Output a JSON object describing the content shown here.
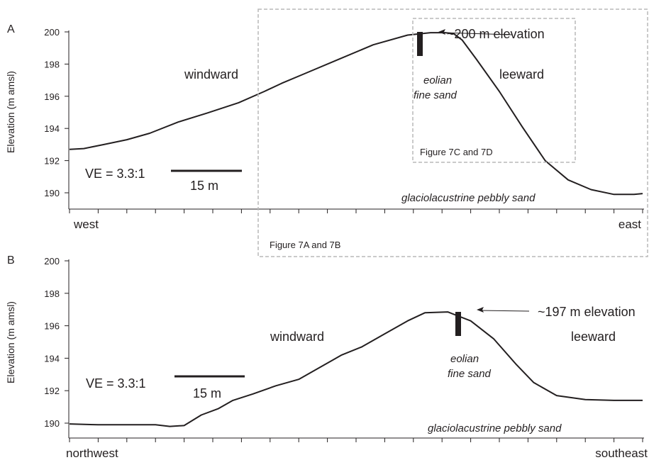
{
  "chart_data": [
    {
      "panel": "A",
      "type": "line",
      "ylabel": "Elevation (m amsl)",
      "ylim": [
        190,
        200
      ],
      "yticks": [
        "190",
        "192",
        "194",
        "196",
        "198",
        "200"
      ],
      "x_start_label": "west",
      "x_end_label": "east",
      "x_range": [
        0,
        10
      ],
      "x": [
        0,
        0.25,
        0.6,
        1.0,
        1.4,
        1.9,
        2.4,
        2.95,
        3.4,
        3.7,
        4.1,
        4.7,
        5.3,
        5.9,
        6.3,
        6.55,
        6.7,
        6.85,
        7.1,
        7.5,
        7.9,
        8.3,
        8.7,
        9.1,
        9.5,
        9.85,
        10.0
      ],
      "y": [
        192.7,
        192.75,
        193.0,
        193.3,
        193.7,
        194.4,
        194.95,
        195.6,
        196.3,
        196.8,
        197.4,
        198.3,
        199.2,
        199.8,
        199.95,
        199.95,
        199.9,
        199.5,
        198.3,
        196.3,
        194.1,
        192.0,
        190.8,
        190.2,
        189.9,
        189.9,
        189.95
      ],
      "annotations": {
        "peak": "~200 m elevation",
        "windward": "windward",
        "leeward": "leeward",
        "eolian_1": "eolian",
        "eolian_2": "fine sand",
        "substrate": "glaciolacustrine pebbly sand",
        "ve": "VE = 3.3:1",
        "scale": "15 m",
        "box_large": "Figure 7A and 7B",
        "box_small": "Figure 7C and 7D"
      }
    },
    {
      "panel": "B",
      "type": "line",
      "ylabel": "Elevation (m amsl)",
      "ylim": [
        190,
        200
      ],
      "yticks": [
        "190",
        "192",
        "194",
        "196",
        "198",
        "200"
      ],
      "x_start_label": "northwest",
      "x_end_label": "southeast",
      "x_range": [
        0,
        10
      ],
      "x": [
        0,
        0.5,
        1.0,
        1.5,
        1.75,
        2.0,
        2.3,
        2.6,
        2.85,
        3.2,
        3.6,
        4.0,
        4.4,
        4.75,
        5.1,
        5.5,
        5.9,
        6.2,
        6.6,
        7.0,
        7.4,
        7.8,
        8.1,
        8.5,
        9.0,
        9.5,
        10.0
      ],
      "y": [
        189.95,
        189.9,
        189.9,
        189.9,
        189.8,
        189.85,
        190.5,
        190.9,
        191.4,
        191.8,
        192.3,
        192.7,
        193.5,
        194.2,
        194.7,
        195.5,
        196.3,
        196.8,
        196.85,
        196.3,
        195.2,
        193.6,
        192.5,
        191.7,
        191.45,
        191.4,
        191.4
      ],
      "annotations": {
        "peak": "~197 m elevation",
        "windward": "windward",
        "leeward": "leeward",
        "eolian_1": "eolian",
        "eolian_2": "fine sand",
        "substrate": "glaciolacustrine pebbly sand",
        "ve": "VE = 3.3:1",
        "scale": "15 m"
      }
    }
  ],
  "colors": {
    "line": "#231f20",
    "dashed_box": "#b8b8b8"
  }
}
